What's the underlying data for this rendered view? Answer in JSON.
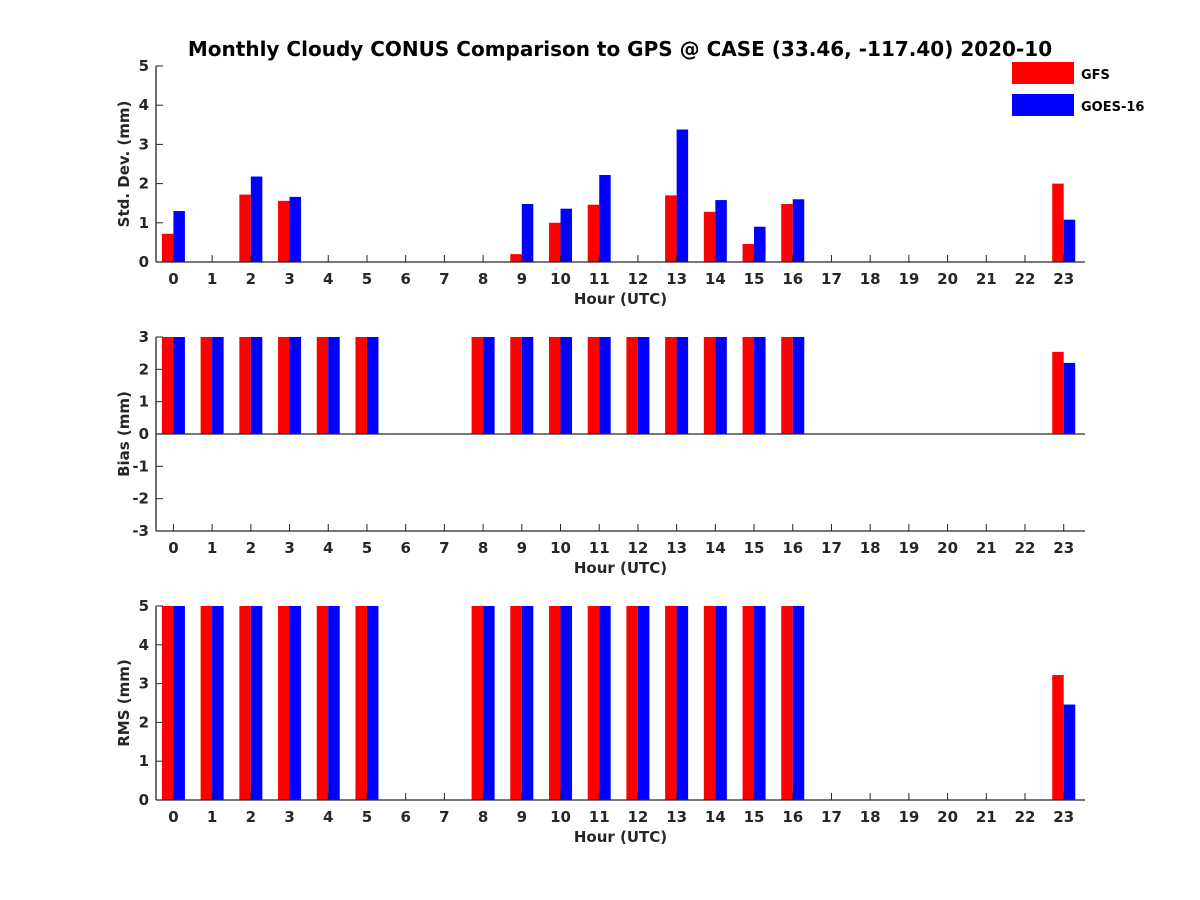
{
  "title": "Monthly Cloudy CONUS Comparison to GPS @ CASE (33.46, -117.40) 2020-10",
  "legend": [
    {
      "name": "GFS",
      "color": "#ff0000"
    },
    {
      "name": "GOES-16",
      "color": "#0000ff"
    }
  ],
  "chart_data": [
    {
      "type": "bar",
      "xlabel": "Hour (UTC)",
      "ylabel": "Std. Dev. (mm)",
      "ylim": [
        0,
        5
      ],
      "yticks": [
        0,
        1,
        2,
        3,
        4,
        5
      ],
      "categories": [
        "0",
        "1",
        "2",
        "3",
        "4",
        "5",
        "6",
        "7",
        "8",
        "9",
        "10",
        "11",
        "12",
        "13",
        "14",
        "15",
        "16",
        "17",
        "18",
        "19",
        "20",
        "21",
        "22",
        "23"
      ],
      "series": [
        {
          "name": "GFS",
          "color": "#ff0000",
          "values": [
            0.72,
            null,
            1.72,
            1.56,
            null,
            null,
            null,
            null,
            null,
            0.2,
            1.0,
            1.46,
            null,
            1.7,
            1.28,
            0.46,
            1.48,
            null,
            null,
            null,
            null,
            null,
            null,
            2.0
          ]
        },
        {
          "name": "GOES-16",
          "color": "#0000ff",
          "values": [
            1.3,
            null,
            2.18,
            1.66,
            null,
            null,
            null,
            null,
            null,
            1.48,
            1.36,
            2.22,
            null,
            3.38,
            1.58,
            0.9,
            1.6,
            null,
            null,
            null,
            null,
            null,
            null,
            1.08
          ]
        }
      ]
    },
    {
      "type": "bar",
      "xlabel": "Hour (UTC)",
      "ylabel": "Bias (mm)",
      "ylim": [
        -3,
        3
      ],
      "yticks": [
        -3,
        -2,
        -1,
        0,
        1,
        2,
        3
      ],
      "categories": [
        "0",
        "1",
        "2",
        "3",
        "4",
        "5",
        "6",
        "7",
        "8",
        "9",
        "10",
        "11",
        "12",
        "13",
        "14",
        "15",
        "16",
        "17",
        "18",
        "19",
        "20",
        "21",
        "22",
        "23"
      ],
      "series": [
        {
          "name": "GFS",
          "color": "#ff0000",
          "values": [
            3,
            3,
            3,
            3,
            3,
            3,
            null,
            null,
            3,
            3,
            3,
            3,
            3,
            3,
            3,
            3,
            3,
            null,
            null,
            null,
            null,
            null,
            null,
            2.54
          ]
        },
        {
          "name": "GOES-16",
          "color": "#0000ff",
          "values": [
            3,
            3,
            3,
            3,
            3,
            3,
            null,
            null,
            3,
            3,
            3,
            3,
            3,
            3,
            3,
            3,
            3,
            null,
            null,
            null,
            null,
            null,
            null,
            2.2
          ]
        }
      ]
    },
    {
      "type": "bar",
      "xlabel": "Hour (UTC)",
      "ylabel": "RMS (mm)",
      "ylim": [
        0,
        5
      ],
      "yticks": [
        0,
        1,
        2,
        3,
        4,
        5
      ],
      "categories": [
        "0",
        "1",
        "2",
        "3",
        "4",
        "5",
        "6",
        "7",
        "8",
        "9",
        "10",
        "11",
        "12",
        "13",
        "14",
        "15",
        "16",
        "17",
        "18",
        "19",
        "20",
        "21",
        "22",
        "23"
      ],
      "series": [
        {
          "name": "GFS",
          "color": "#ff0000",
          "values": [
            5,
            5,
            5,
            5,
            5,
            5,
            null,
            null,
            5,
            5,
            5,
            5,
            5,
            5,
            5,
            5,
            5,
            null,
            null,
            null,
            null,
            null,
            null,
            3.22
          ]
        },
        {
          "name": "GOES-16",
          "color": "#0000ff",
          "values": [
            5,
            5,
            5,
            5,
            5,
            5,
            null,
            null,
            5,
            5,
            5,
            5,
            5,
            5,
            5,
            5,
            5,
            null,
            null,
            null,
            null,
            null,
            null,
            2.46
          ]
        }
      ]
    }
  ]
}
